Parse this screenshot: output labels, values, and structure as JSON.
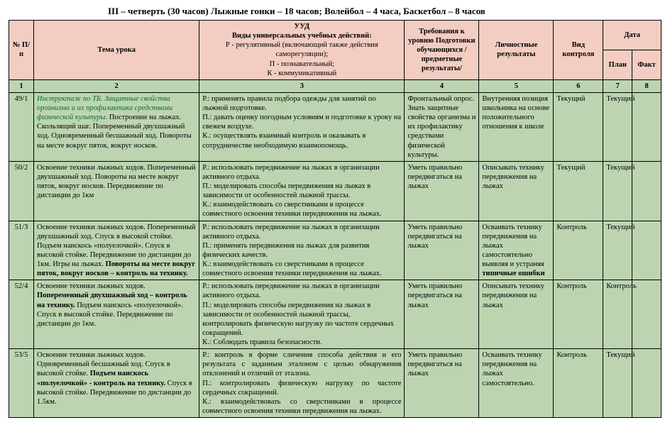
{
  "title": "III – четверть (30 часов)     Лыжные гонки – 18 часов; Волейбол – 4 часа, Баскетбол – 8 часов",
  "headers": {
    "num": "№ П/п",
    "topic": "Тема урока",
    "uud_title": "УУД",
    "uud_sub1": "Виды универсальных учебных действий:",
    "uud_sub2": "Р - регулятивный (включающий также действия саморегуляции);",
    "uud_sub3": "П - познавательный;",
    "uud_sub4": "К - коммуникативный",
    "req": "Требования к уровню Подготовки обучающихся /предметные результаты/",
    "pers": "Личностные результаты",
    "ctrl": "Вид контроля",
    "date": "Дата",
    "plan": "План",
    "fact": "Факт"
  },
  "numrow": [
    "1",
    "2",
    "3",
    "4",
    "5",
    "6",
    "7",
    "8"
  ],
  "rows": [
    {
      "n": "49/1",
      "topic_green": "Инструктаж по ТБ. Защитные свойства организма и их профилактика средствами физической культуры.",
      "topic_rest": "Построение на лыжах. Скользящий шаг. Попеременный двухшажный ход. Одновременный бесшажный ход. Повороты на месте вокруг пяток, вокруг носков.",
      "uud": "Р.: применять правила подбора одежды для занятий по лыжной подготовке.\nП.: давать оценку погодным условиям и подготовке к уроку на свежем воздухе.\nК.: осуществлять взаимный контроль и оказывать в сотрудничестве необходимую взаимопомощь.",
      "req": "Фронтальный опрос.\nЗнать  защитные свойства организма  и  их профилактику средствами физической культуры.",
      "pers": "Внутренняя позиция школьника на основе положительного отношения к школе",
      "ctrl": "Текущий",
      "plan": "Текущий"
    },
    {
      "n": "50/2",
      "topic": "Освоение техники лыжных ходов. Попеременный двухшажный ход. Повороты на месте вокруг пяток, вокруг носков. Передвижение по дистанции до 1км",
      "uud": "Р.:  использовать передвижение на лыжах в организации активного отдыха.\nП.: моделировать способы передвижения на лыжах в зависимости от особенностей лыжной трассы.\nК.: взаимодействовать со сверстниками в процессе совместного освоения техники передвижения на лыжах.",
      "req": "Уметь правильно передвигаться на лыжах",
      "pers": "Описывать технику передвижения на лыжах",
      "ctrl": "Текущий",
      "plan": "Текущий"
    },
    {
      "n": "51/3",
      "topic_p1": "Освоение техники лыжных ходов. Попеременный двухшажный ход. Спуск в высокой стойке. Подъем наискось «полуелочкой».  Спуск в высокой стойке. Передвижение по дистанции до 1км. Игры на лыжах. ",
      "topic_bold": "Повороты на месте вокруг пяток, вокруг носков – контроль на технику.",
      "uud": "Р.: использовать передвижение на лыжах в организации активного отдыха.\nП.: применять передвижения на лыжах для развития физических качеств.\nК.: взаимодействовать со сверстниками в процессе совместного освоения техники передвижения на лыжах.",
      "req": "Уметь правильно передвигаться на лыжах",
      "pers_p1": "Осваивать технику передвижения на лыжах самостоятельно выявляя и устраняя ",
      "pers_bold": "типичные ошибки",
      "ctrl": "Контроль",
      "plan": "Текущий"
    },
    {
      "n": "52/4",
      "topic_p1": "Освоение техники лыжных ходов. ",
      "topic_bold": "Попеременный двухшажный ход – контроль на технику.",
      "topic_p2": " Подъем наискось «полуелочкой». Спуск в высокой стойке. Передвижение по дистанции до 1км.",
      "uud": "Р.:  использовать передвижение на лыжах в организации активного отдыха.\nП.: моделировать способы передвижения на лыжах в зависимости от особенностей лыжной трассы, контролировать физическую нагрузку по частоте сердечных сокращений.\nК.: Соблюдать правила безопасности.",
      "req": "Уметь правильно передвигаться на лыжах",
      "pers": "Описывать технику передвижения на лыжах",
      "ctrl": "Контроль",
      "plan": "Контроль"
    },
    {
      "n": "53/5",
      "topic_p1": "Освоение техники лыжных ходов. Одновременный бесшажный ход. Спуск в высокой стойке. ",
      "topic_bold": "Подъем наискось «полуелочкой» - контроль на технику.",
      "topic_p2": " Спуск в высокой стойке. Передвижение по дистанции до 1.5км.",
      "uud": "Р.:  контроль в форме сличения способа действия и его результата с заданным эталоном с целью обнаружения отклонений и отличий от эталона.\nП.: контролировать физическую нагрузку по частоте сердечных сокращений.\nК.:   взаимодействовать   со   сверстниками   в   процессе совместного освоения техники передвижения на лыжах.",
      "req": "Уметь правильно передвигаться на лыжах",
      "pers": "Осваивать технику передвижения на лыжах самостоятельно.",
      "ctrl": "Контроль",
      "plan": "Текущий"
    }
  ]
}
